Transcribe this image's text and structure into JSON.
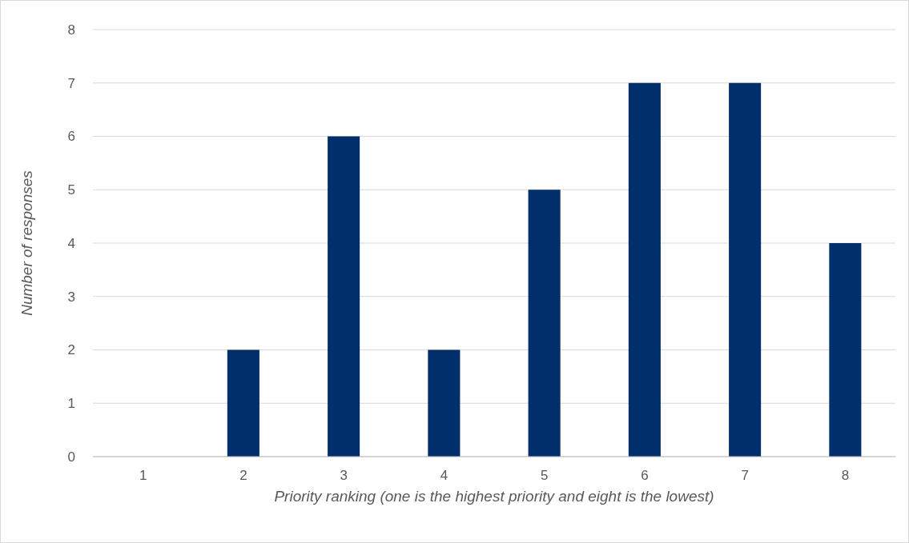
{
  "chart_data": {
    "type": "bar",
    "xlabel": "Priority ranking (one is the highest priority and eight is the lowest)",
    "ylabel": "Number of responses",
    "categories": [
      "1",
      "2",
      "3",
      "4",
      "5",
      "6",
      "7",
      "8"
    ],
    "values": [
      0,
      2,
      6,
      2,
      5,
      7,
      7,
      4
    ],
    "color": "#002f6c",
    "ylim": [
      0,
      8
    ],
    "yticks": [
      0,
      1,
      2,
      3,
      4,
      5,
      6,
      7,
      8
    ],
    "grid": "y"
  }
}
